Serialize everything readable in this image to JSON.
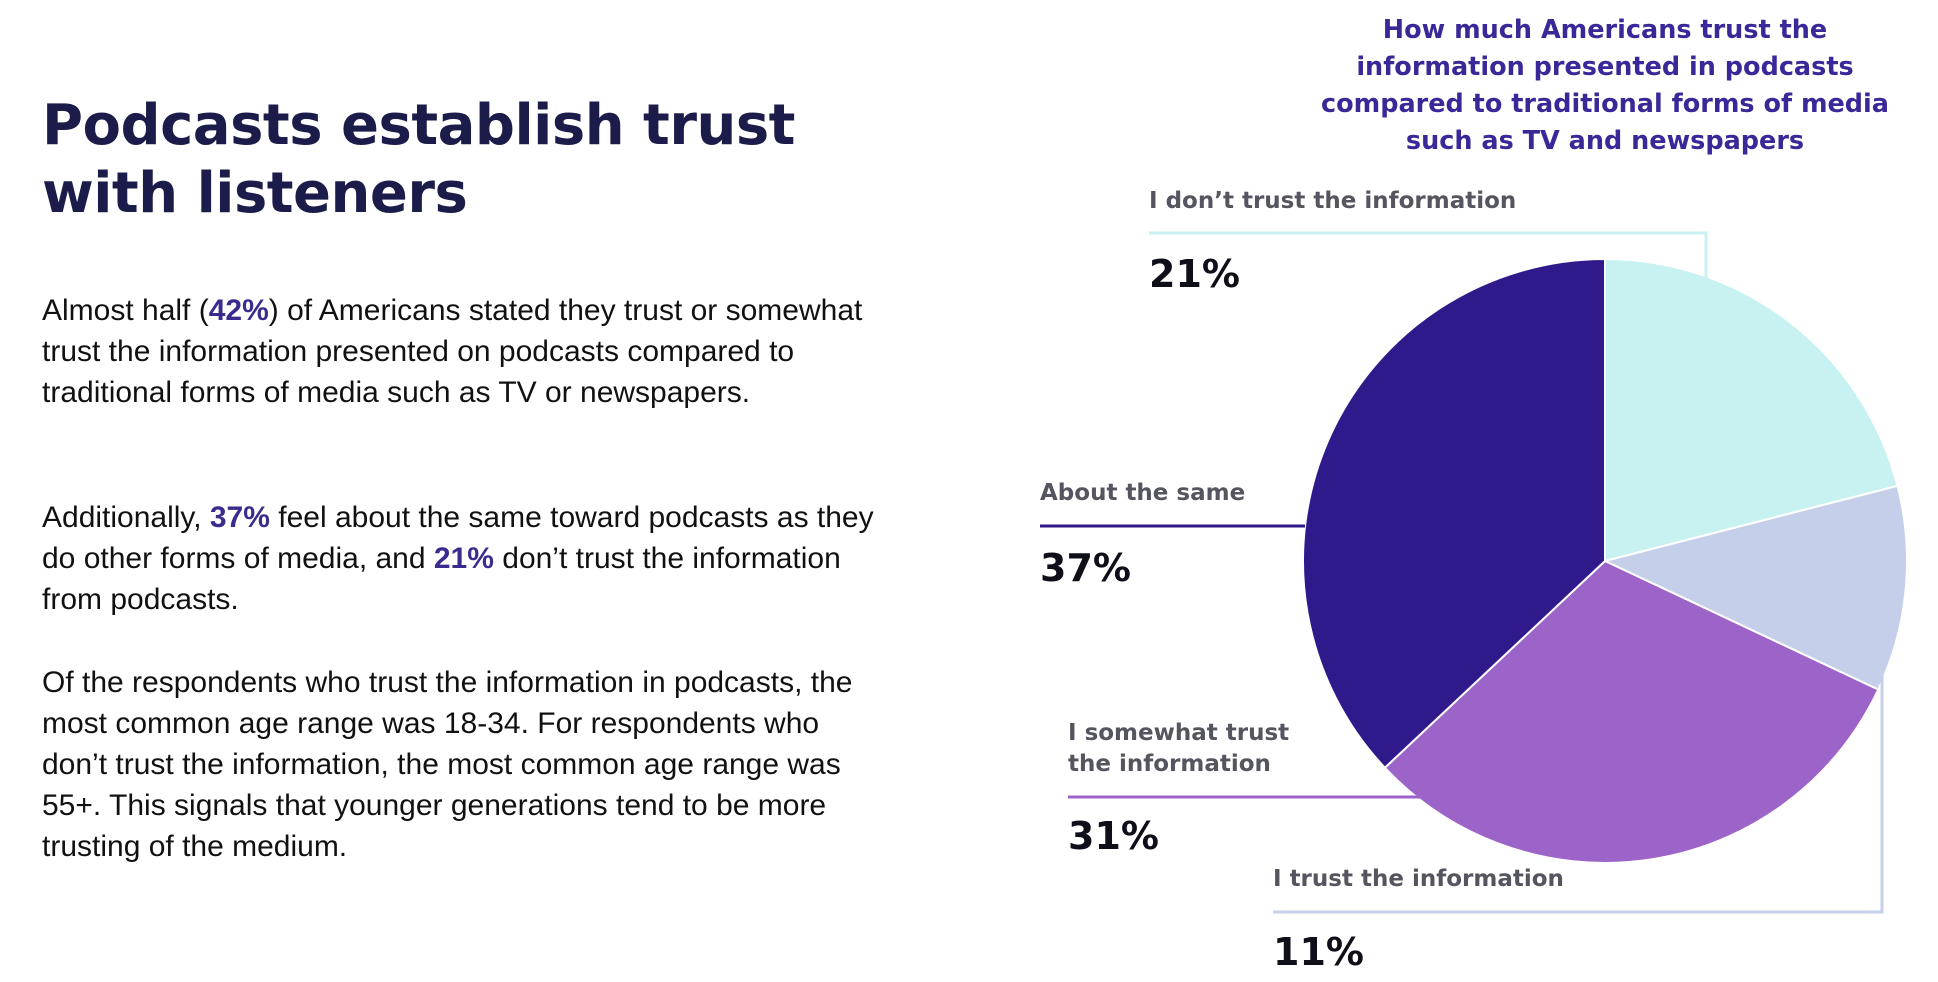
{
  "headline": "Podcasts establish trust with listeners",
  "paragraphs": {
    "p1": {
      "pre": "Almost half (",
      "hl1": "42%",
      "post": ") of Americans stated they trust or somewhat trust the information presented on podcasts compared to traditional forms of media such as TV or newspapers."
    },
    "p2": {
      "pre": "Additionally, ",
      "hl1": "37%",
      "mid": " feel about the same toward podcasts as they do other forms of media, and ",
      "hl2": "21%",
      "post": " don’t trust the information from podcasts."
    },
    "p3": {
      "text": "Of the respondents who trust the information in podcasts, the most common age range was 18-34. For respondents who don’t trust the information, the most common age range was 55+. This signals that younger generations tend to be more trusting of the medium."
    }
  },
  "colors": {
    "accent": "#3b2b8f",
    "title": "#3a2898"
  },
  "chart_data": {
    "type": "pie",
    "title": "How much Americans trust the information presented in podcasts compared to traditional forms of media such as TV and newspapers",
    "unit": "%",
    "slices": [
      {
        "label": "I don’t trust the information",
        "value": 21,
        "value_label": "21%",
        "color": "#c8f2f2"
      },
      {
        "label": "I trust the information",
        "value": 11,
        "value_label": "11%",
        "color": "#c6cfe9"
      },
      {
        "label": "I somewhat trust the information",
        "value": 31,
        "value_label": "31%",
        "color": "#9c63c8"
      },
      {
        "label": "About the same",
        "value": 37,
        "value_label": "37%",
        "color": "#30198a"
      }
    ]
  }
}
